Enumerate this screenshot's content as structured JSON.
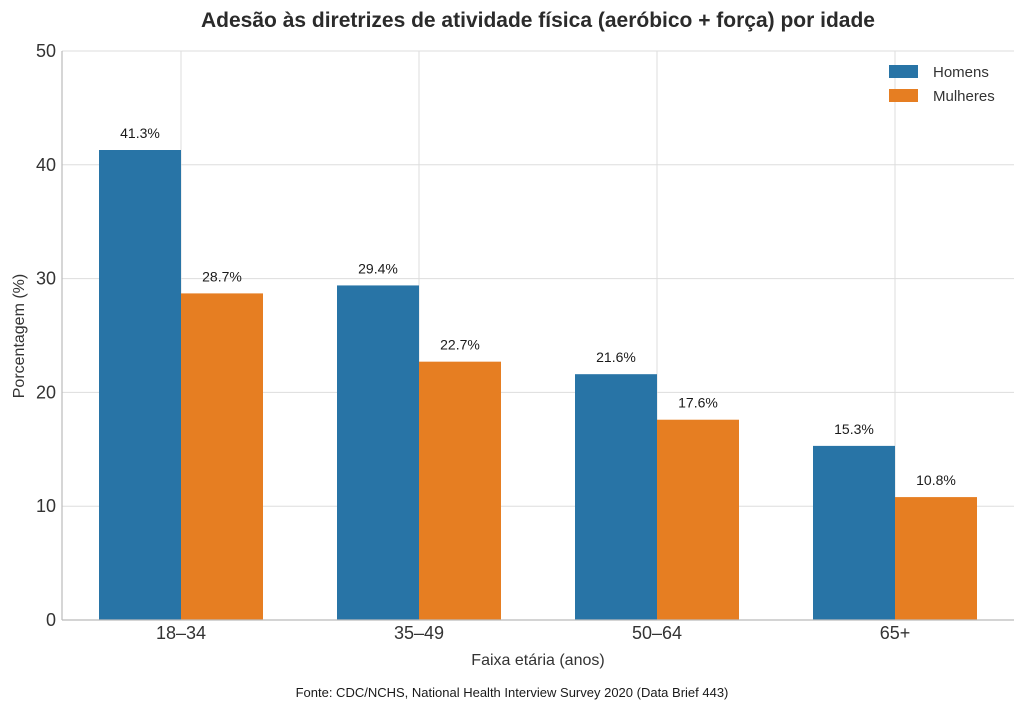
{
  "chart_data": {
    "type": "bar",
    "title": "Adesão às diretrizes de atividade física (aeróbico + força) por idade",
    "xlabel": "Faixa etária (anos)",
    "ylabel": "Porcentagem (%)",
    "categories": [
      "18–34",
      "35–49",
      "50–64",
      "65+"
    ],
    "series": [
      {
        "name": "Homens",
        "color": "#2874a6",
        "values": [
          41.3,
          29.4,
          21.6,
          15.3
        ]
      },
      {
        "name": "Mulheres",
        "color": "#e67e22",
        "values": [
          28.7,
          22.7,
          17.6,
          10.8
        ]
      }
    ],
    "ylim": [
      0,
      50
    ],
    "yticks": [
      0,
      10,
      20,
      30,
      40,
      50
    ],
    "value_suffix": "%",
    "grid": true,
    "legend_position": "top-right",
    "source": "Fonte: CDC/NCHS, National Health Interview Survey 2020 (Data Brief 443)"
  }
}
